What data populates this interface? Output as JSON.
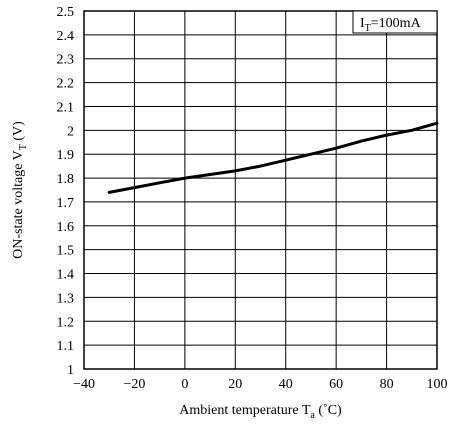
{
  "chart_data": {
    "type": "line",
    "xlabel": "Ambient temperature T",
    "xlabel_sub": "a",
    "xlabel_unit": " (˚C)",
    "ylabel": "ON-state voltage V",
    "ylabel_sub": "T",
    "ylabel_unit": " (V)",
    "annotation": {
      "main": "I",
      "sub": "T",
      "rest": "=100mA"
    },
    "xlim": [
      -40,
      100
    ],
    "ylim": [
      1,
      2.5
    ],
    "x_ticks": [
      -40,
      -20,
      0,
      20,
      40,
      60,
      80,
      100
    ],
    "x_tick_labels": [
      "−40",
      "−20",
      "0",
      "20",
      "40",
      "60",
      "80",
      "100"
    ],
    "y_ticks": [
      1,
      1.1,
      1.2,
      1.3,
      1.4,
      1.5,
      1.6,
      1.7,
      1.8,
      1.9,
      2,
      2.1,
      2.2,
      2.3,
      2.4,
      2.5
    ],
    "y_tick_labels": [
      "1",
      "1.1",
      "1.2",
      "1.3",
      "1.4",
      "1.5",
      "1.6",
      "1.7",
      "1.8",
      "1.9",
      "2",
      "2.1",
      "2.2",
      "2.3",
      "2.4",
      "2.5"
    ],
    "grid": true,
    "series": [
      {
        "x": [
          -30,
          -20,
          -10,
          0,
          10,
          20,
          30,
          40,
          50,
          60,
          70,
          80,
          90,
          100
        ],
        "y": [
          1.74,
          1.76,
          1.78,
          1.8,
          1.815,
          1.83,
          1.85,
          1.875,
          1.9,
          1.925,
          1.955,
          1.98,
          2.0,
          2.03
        ]
      }
    ]
  }
}
